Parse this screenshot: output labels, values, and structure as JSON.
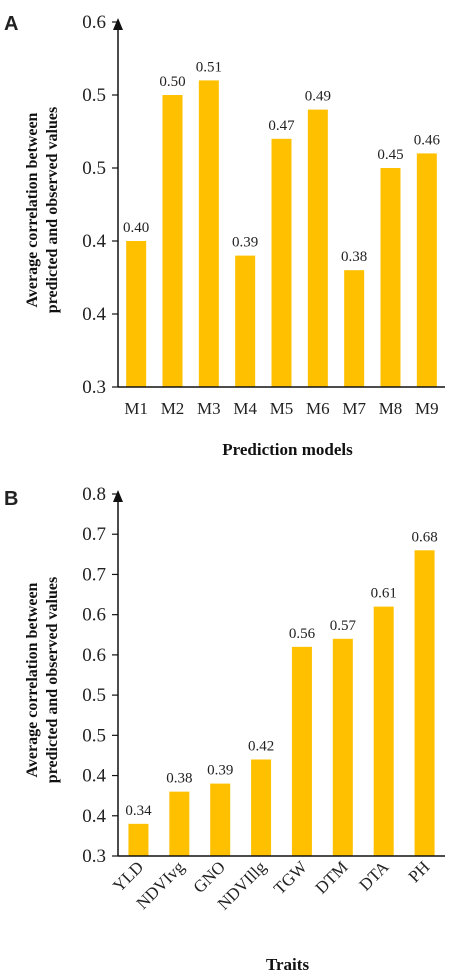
{
  "chart_data": [
    {
      "type": "bar",
      "panel": "A",
      "categories": [
        "M1",
        "M2",
        "M3",
        "M4",
        "M5",
        "M6",
        "M7",
        "M8",
        "M9"
      ],
      "values": [
        0.4,
        0.5,
        0.51,
        0.39,
        0.47,
        0.49,
        0.38,
        0.45,
        0.46
      ],
      "data_labels": [
        "0.40",
        "0.50",
        "0.51",
        "0.39",
        "0.47",
        "0.49",
        "0.38",
        "0.45",
        "0.46"
      ],
      "yticks": [
        "0.3",
        "0.4",
        "0.4",
        "0.5",
        "0.5",
        "0.6"
      ],
      "ylim": [
        0.3,
        0.55
      ],
      "xlabel": "Prediction models",
      "ylabel": [
        "Average correlation between",
        "predicted and observed values"
      ],
      "bar_color": "#FFC000",
      "grid": false
    },
    {
      "type": "bar",
      "panel": "B",
      "categories": [
        "YLD",
        "NDVIvg",
        "GNO",
        "NDVIllg",
        "TGW",
        "DTM",
        "DTA",
        "PH"
      ],
      "values": [
        0.34,
        0.38,
        0.39,
        0.42,
        0.56,
        0.57,
        0.61,
        0.68
      ],
      "data_labels": [
        "0.34",
        "0.38",
        "0.39",
        "0.42",
        "0.56",
        "0.57",
        "0.61",
        "0.68"
      ],
      "yticks": [
        "0.3",
        "0.4",
        "0.4",
        "0.5",
        "0.5",
        "0.6",
        "0.6",
        "0.7",
        "0.7",
        "0.8"
      ],
      "ylim": [
        0.3,
        0.75
      ],
      "xlabel": "Traits",
      "ylabel": [
        "Average correlation between",
        "predicted and observed values"
      ],
      "bar_color": "#FFC000",
      "grid": false
    }
  ]
}
